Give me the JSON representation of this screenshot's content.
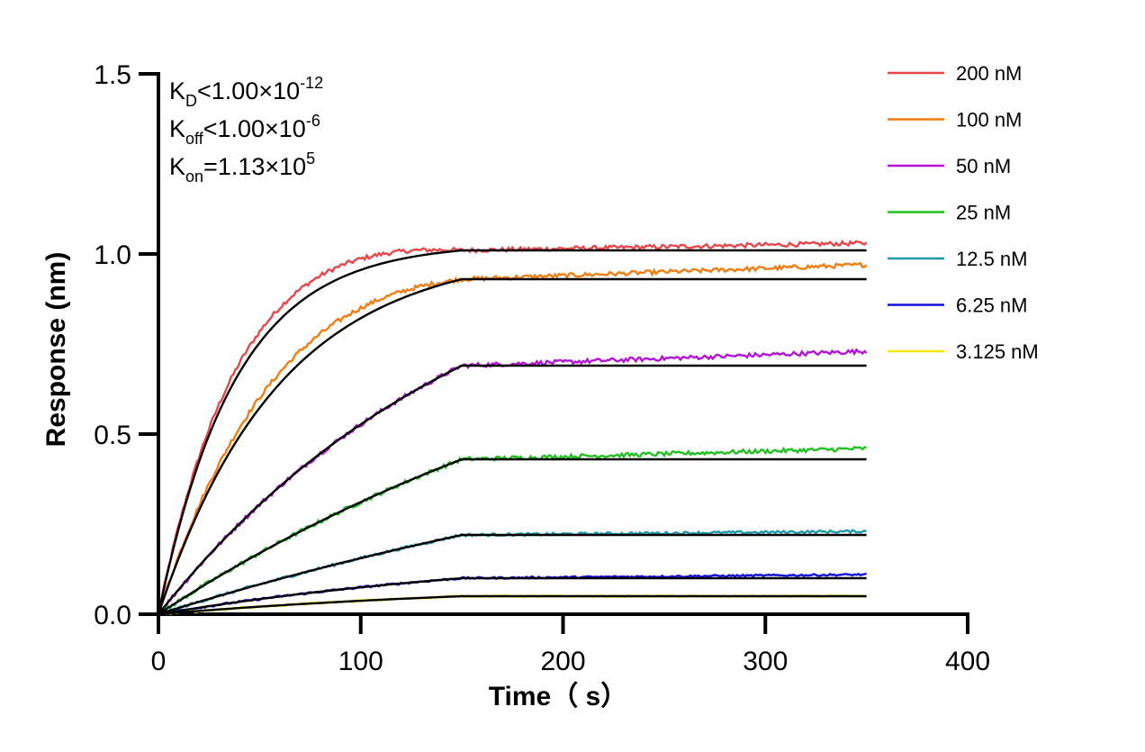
{
  "chart_data": {
    "type": "line",
    "xlabel": "Time（ s）",
    "ylabel": "Response (nm)",
    "xlim": [
      0,
      400
    ],
    "ylim": [
      0,
      1.5
    ],
    "x_ticks": [
      "0",
      "100",
      "200",
      "300",
      "400"
    ],
    "y_ticks": [
      "0.0",
      "0.5",
      "1.0",
      "1.5"
    ],
    "legend_position": "top-right",
    "grid": false,
    "annotations": [
      {
        "base": "K",
        "sub": "D",
        "text": "<1.00×10",
        "sup": "-12"
      },
      {
        "base": "K",
        "sub": "off",
        "text": "<1.00×10",
        "sup": "-6"
      },
      {
        "base": "K",
        "sub": "on",
        "text": "=1.13×10",
        "sup": "5"
      }
    ],
    "association_end_time": 150,
    "end_time": 350,
    "fit_color": "#000000",
    "series": [
      {
        "name": "200 nM",
        "color": "#e8474a",
        "plateau": 1.01,
        "tau": 38,
        "end_drift": 0.02
      },
      {
        "name": "100 nM",
        "color": "#f27d12",
        "plateau": 0.93,
        "tau": 60,
        "end_drift": 0.04
      },
      {
        "name": "50 nM",
        "color": "#b414d8",
        "plateau": 0.69,
        "tau": 160,
        "end_drift": 0.04
      },
      {
        "name": "25 nM",
        "color": "#20c020",
        "plateau": 0.43,
        "tau": 280,
        "end_drift": 0.03
      },
      {
        "name": "12.5 nM",
        "color": "#1f9aaa",
        "plateau": 0.22,
        "tau": 400,
        "end_drift": 0.01
      },
      {
        "name": "6.25 nM",
        "color": "#1010d8",
        "plateau": 0.1,
        "tau": 200,
        "end_drift": 0.01
      },
      {
        "name": "3.125 nM",
        "color": "#f2ea10",
        "plateau": 0.05,
        "tau": 200,
        "end_drift": 0.0
      }
    ]
  }
}
